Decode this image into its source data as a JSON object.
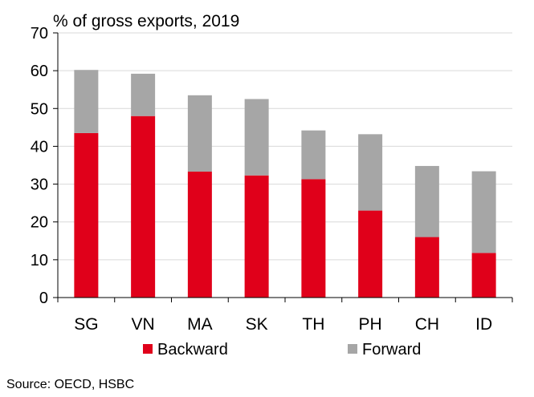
{
  "chart_data": {
    "type": "bar",
    "stacked": true,
    "title": "% of gross exports, 2019",
    "categories": [
      "SG",
      "VN",
      "MA",
      "SK",
      "TH",
      "PH",
      "CH",
      "ID"
    ],
    "series": [
      {
        "name": "Backward",
        "color": "#e0001a",
        "values": [
          43.5,
          48.0,
          33.3,
          32.3,
          31.3,
          23.0,
          16.0,
          11.8
        ]
      },
      {
        "name": "Forward",
        "color": "#a6a6a6",
        "values": [
          16.7,
          11.2,
          20.2,
          20.2,
          12.9,
          20.2,
          18.8,
          21.6
        ]
      }
    ],
    "ylim": [
      0,
      70
    ],
    "yticks": [
      0,
      10,
      20,
      30,
      40,
      50,
      60,
      70
    ],
    "grid": true,
    "legend": "bottom",
    "source": "Source: OECD, HSBC"
  }
}
